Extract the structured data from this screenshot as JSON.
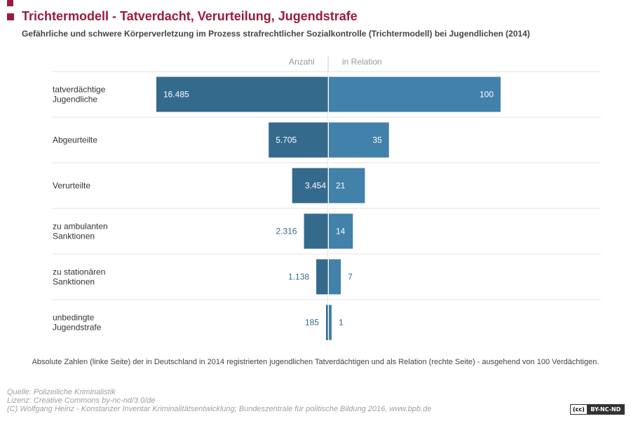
{
  "header": {
    "title": "Trichtermodell - Tatverdacht, Verurteilung, Jugendstrafe",
    "subtitle": "Gefährliche und schwere Körperverletzung im Prozess strafrechtlicher Sozialkontrolle (Trichtermodell) bei Jugendlichen (2014)"
  },
  "chart_data": {
    "type": "bar",
    "orientation": "horizontal-diverging",
    "left_header": "Anzahl",
    "right_header": "in Relation",
    "categories": [
      [
        "tatverdächtige",
        "Jugendliche"
      ],
      [
        "Abgeurteilte"
      ],
      [
        "Verurteilte"
      ],
      [
        "zu ambulanten",
        "Sanktionen"
      ],
      [
        "zu stationären",
        "Sanktionen"
      ],
      [
        "unbedingte",
        "Jugendstrafe"
      ]
    ],
    "series": [
      {
        "name": "Anzahl",
        "values": [
          16485,
          5705,
          3454,
          2316,
          1138,
          185
        ],
        "labels": [
          "16.485",
          "5.705",
          "3.454",
          "2.316",
          "1.138",
          "185"
        ],
        "color": "#346a8c"
      },
      {
        "name": "in Relation",
        "values": [
          100,
          35,
          21,
          14,
          7,
          1
        ],
        "labels": [
          "100",
          "35",
          "21",
          "14",
          "7",
          "1"
        ],
        "color": "#4181aa"
      }
    ],
    "grid": true
  },
  "note": "Absolute Zahlen (linke Seite) der in Deutschland in 2014 registrierten jugendlichen Tatverdächtigen und als Relation (rechte Seite) - ausgehend von 100 Verdächtigen.",
  "footer": {
    "source": "Quelle: Polizeiliche Kriminalistik",
    "license": "Lizenz: Creative Commons by-nc-nd/3.0/de",
    "copyright": "(C) Wolfgang Heinz - Konstanzer Inventar Kriminalitätsentwicklung; Bundeszentrale für politische Bildung 2016, www.bpb.de",
    "badge_left": "(cc)",
    "badge_right": "BY-NC-ND"
  }
}
